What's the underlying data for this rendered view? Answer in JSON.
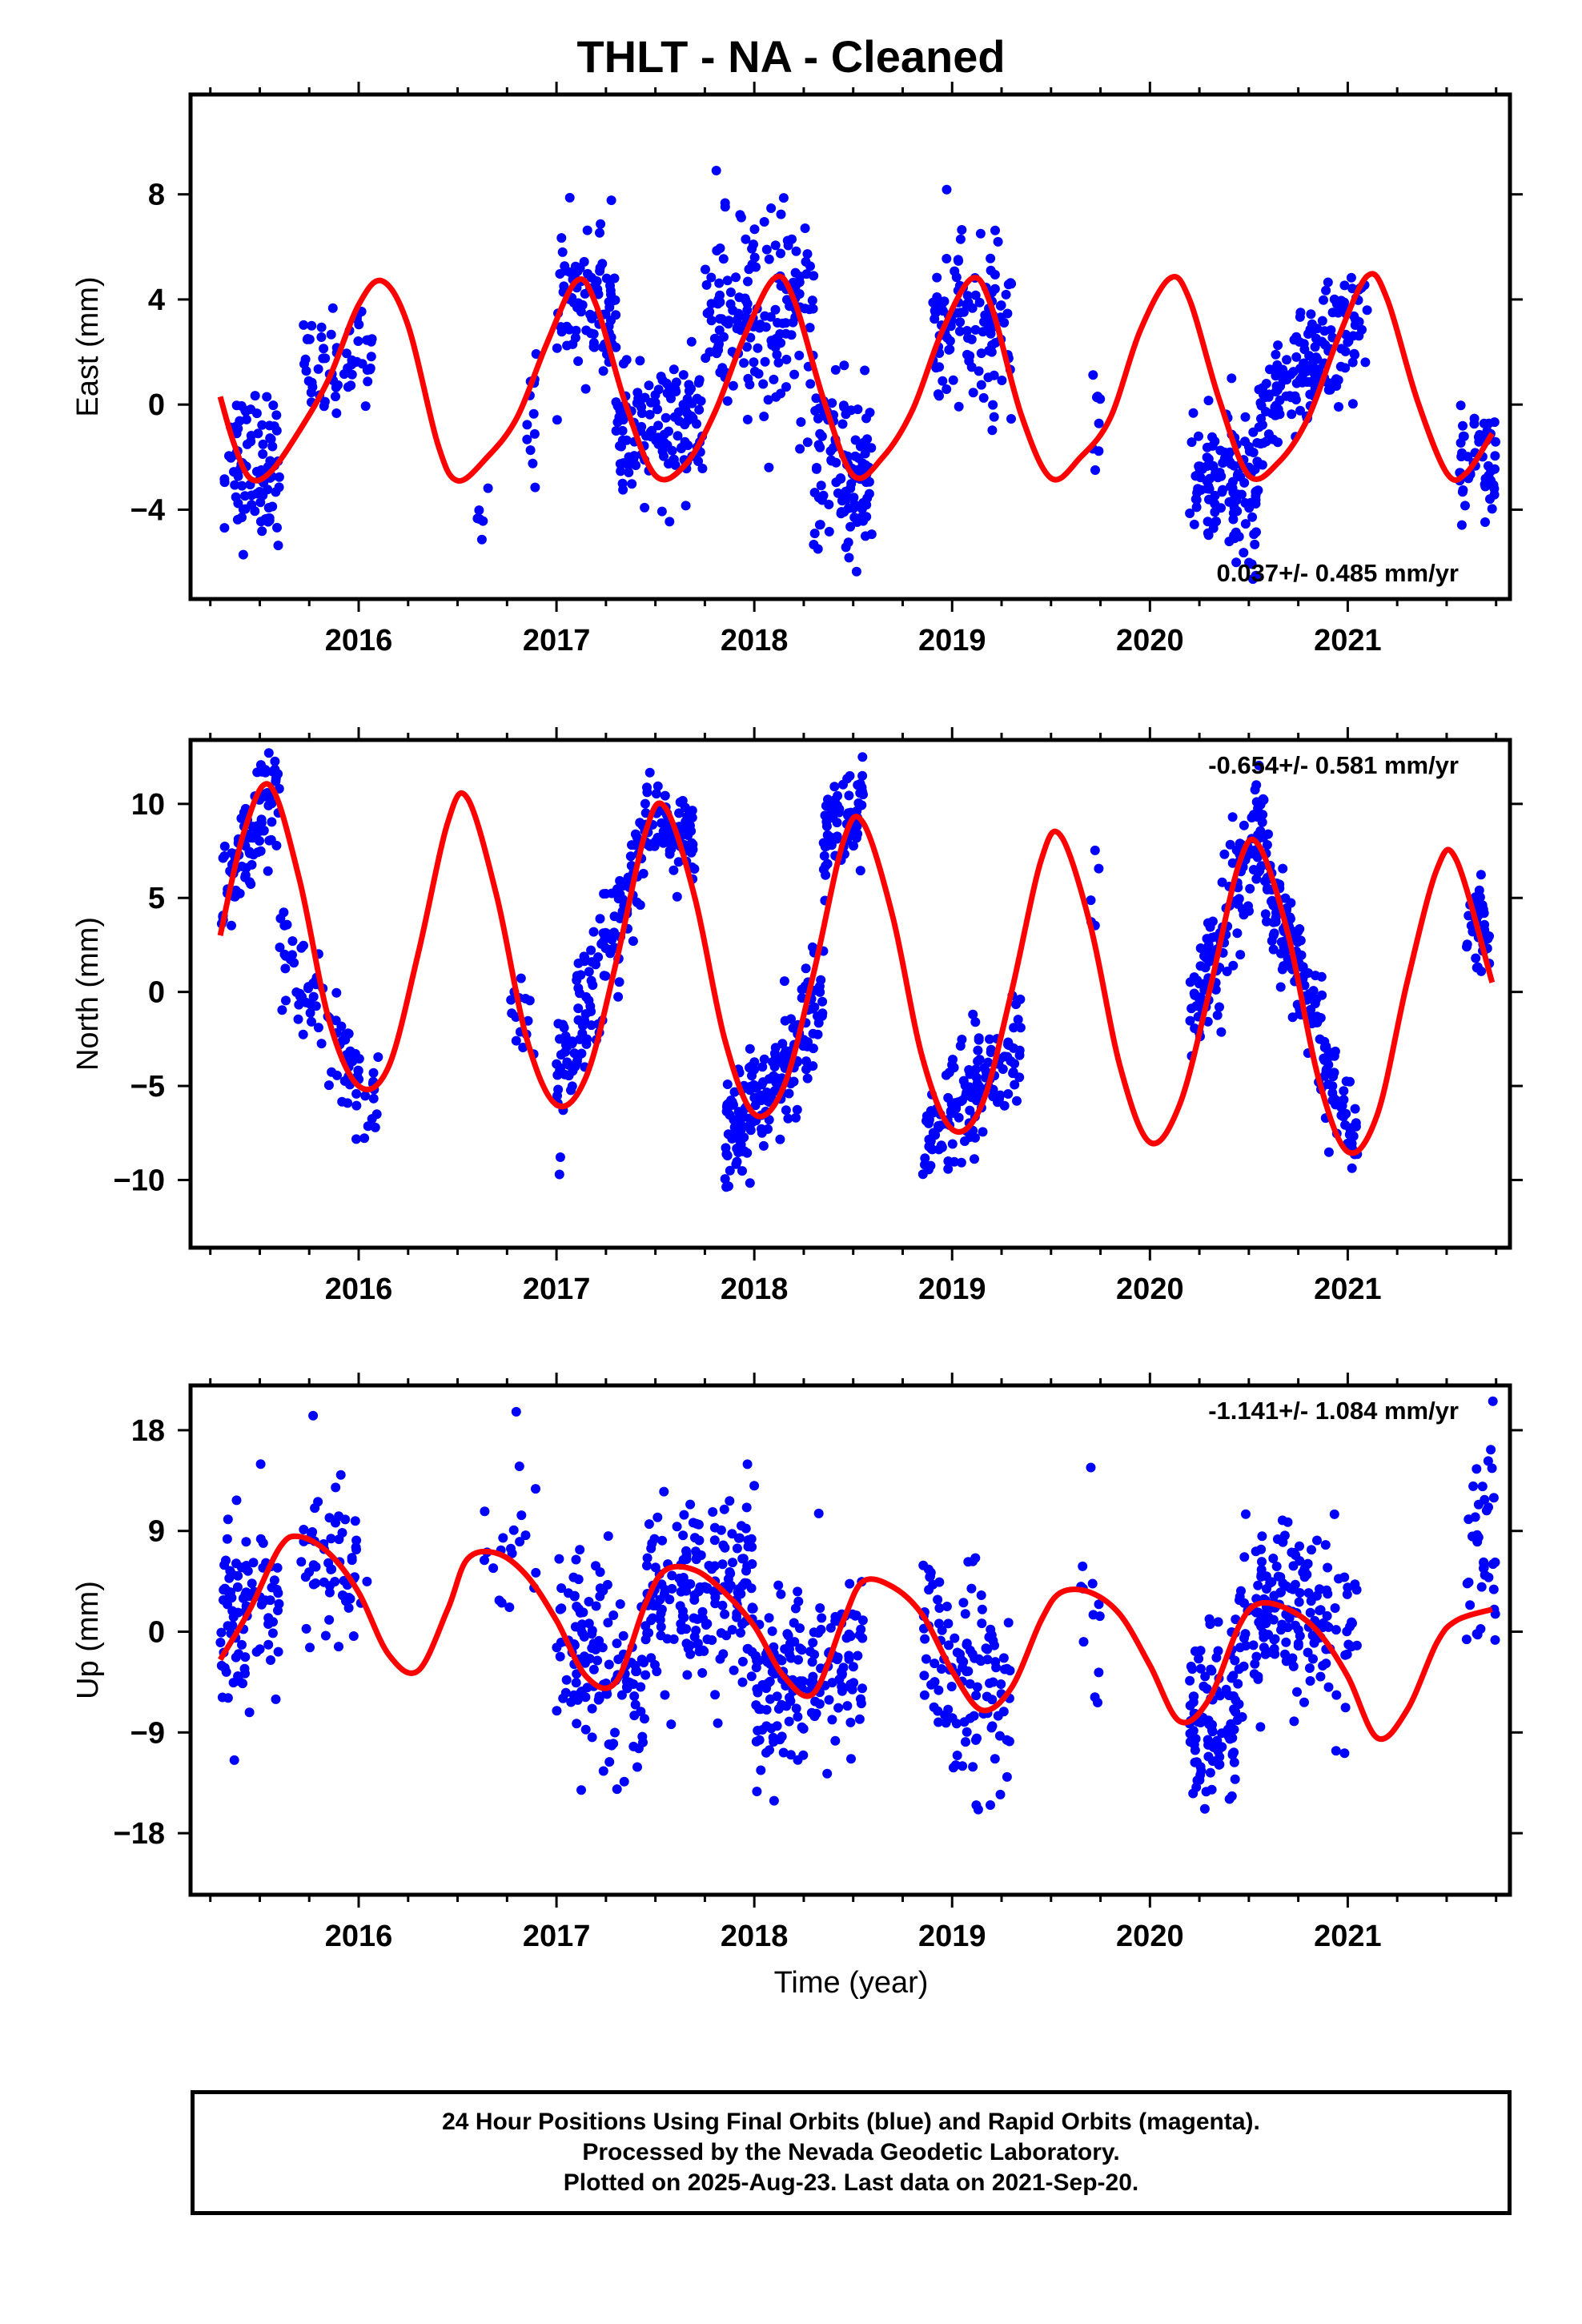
{
  "title": "THLT  - NA - Cleaned",
  "xlabel": "Time (year)",
  "footer": {
    "line1": "24 Hour Positions Using Final Orbits (blue) and Rapid Orbits (magenta).",
    "line2": "Processed by the Nevada Geodetic Laboratory.",
    "line3": "Plotted on 2025-Aug-23. Last data on 2021-Sep-20."
  },
  "colors": {
    "observations": "#0000ff",
    "model": "#ff0000",
    "frame": "#000000"
  },
  "chart_data": [
    {
      "type": "scatter",
      "ylabel": "East (mm)",
      "xlim": [
        2015.15,
        2021.82
      ],
      "ylim": [
        -7.4,
        11.8
      ],
      "x_ticks": [
        2016,
        2017,
        2018,
        2019,
        2020,
        2021
      ],
      "y_ticks": [
        -4,
        0,
        4,
        8
      ],
      "rate_label": "0.037+/- 0.485 mm/yr",
      "rate_position": "bottom-right",
      "model_curve": {
        "x": [
          2015.3,
          2015.37,
          2015.45,
          2015.55,
          2015.7,
          2015.85,
          2016.0,
          2016.12,
          2016.25,
          2016.4,
          2016.5,
          2016.65,
          2016.8,
          2016.95,
          2017.1,
          2017.2,
          2017.35,
          2017.5,
          2017.65,
          2017.8,
          2017.95,
          2018.1,
          2018.2,
          2018.35,
          2018.5,
          2018.65,
          2018.8,
          2018.95,
          2019.1,
          2019.2,
          2019.35,
          2019.5,
          2019.65,
          2019.8,
          2019.95,
          2020.1,
          2020.2,
          2020.35,
          2020.5,
          2020.65,
          2020.8,
          2020.95,
          2021.1,
          2021.2,
          2021.35,
          2021.5,
          2021.6,
          2021.73
        ],
        "y": [
          0.3,
          -1.5,
          -2.8,
          -2.6,
          -1.0,
          1.0,
          3.8,
          4.7,
          3.0,
          -1.5,
          -2.9,
          -2.0,
          -0.5,
          2.3,
          4.7,
          3.8,
          0.0,
          -2.7,
          -2.3,
          -0.3,
          2.6,
          4.8,
          4.0,
          0.2,
          -2.7,
          -2.0,
          -0.2,
          2.8,
          4.8,
          3.7,
          -0.4,
          -2.8,
          -2.0,
          -0.5,
          2.8,
          4.8,
          4.0,
          0.2,
          -2.7,
          -2.2,
          -0.5,
          2.5,
          4.9,
          4.0,
          0.2,
          -2.6,
          -2.6,
          -1.1
        ]
      },
      "seasonal_clusters": [
        {
          "start": 2015.32,
          "end": 2015.6,
          "center": -2.3,
          "slope": 0.8,
          "spread": 1.4,
          "count": 90
        },
        {
          "start": 2015.72,
          "end": 2016.07,
          "center": 1.6,
          "slope": 4.0,
          "spread": 1.0,
          "count": 60
        },
        {
          "start": 2016.6,
          "end": 2016.66,
          "center": -4.2,
          "slope": 0,
          "spread": 0.6,
          "count": 6
        },
        {
          "start": 2016.85,
          "end": 2016.9,
          "center": -0.4,
          "slope": 1.0,
          "spread": 1.2,
          "count": 12
        },
        {
          "start": 2017.0,
          "end": 2017.3,
          "center": 4.0,
          "slope": -2.0,
          "spread": 1.4,
          "count": 90
        },
        {
          "start": 2017.3,
          "end": 2017.75,
          "center": -1.0,
          "slope": 0.4,
          "spread": 1.2,
          "count": 140
        },
        {
          "start": 2017.75,
          "end": 2018.3,
          "center": 3.2,
          "slope": 2.0,
          "spread": 2.0,
          "count": 170
        },
        {
          "start": 2018.3,
          "end": 2018.6,
          "center": -2.5,
          "slope": -0.5,
          "spread": 1.6,
          "count": 110
        },
        {
          "start": 2018.9,
          "end": 2019.3,
          "center": 3.0,
          "slope": -1.0,
          "spread": 1.6,
          "count": 120
        },
        {
          "start": 2019.7,
          "end": 2019.75,
          "center": -0.5,
          "slope": 0,
          "spread": 1.0,
          "count": 8
        },
        {
          "start": 2020.2,
          "end": 2020.55,
          "center": -3.0,
          "slope": -2.0,
          "spread": 1.6,
          "count": 130
        },
        {
          "start": 2020.55,
          "end": 2021.1,
          "center": 1.5,
          "slope": 7.0,
          "spread": 1.1,
          "count": 170
        },
        {
          "start": 2021.55,
          "end": 2021.75,
          "center": -2.3,
          "slope": 1.0,
          "spread": 1.1,
          "count": 50
        }
      ]
    },
    {
      "type": "scatter",
      "ylabel": "North (mm)",
      "xlim": [
        2015.15,
        2021.82
      ],
      "ylim": [
        -13.6,
        13.4
      ],
      "x_ticks": [
        2016,
        2017,
        2018,
        2019,
        2020,
        2021
      ],
      "y_ticks": [
        -10,
        -5,
        0,
        5,
        10
      ],
      "rate_label": "-0.654+/- 0.581 mm/yr",
      "rate_position": "top-right",
      "model_curve": {
        "x": [
          2015.3,
          2015.42,
          2015.55,
          2015.7,
          2015.85,
          2016.0,
          2016.15,
          2016.3,
          2016.45,
          2016.55,
          2016.7,
          2016.85,
          2017.0,
          2017.15,
          2017.3,
          2017.45,
          2017.55,
          2017.7,
          2017.85,
          2018.0,
          2018.15,
          2018.3,
          2018.45,
          2018.55,
          2018.7,
          2018.85,
          2019.0,
          2019.15,
          2019.3,
          2019.45,
          2019.55,
          2019.7,
          2019.85,
          2020.0,
          2020.15,
          2020.3,
          2020.45,
          2020.55,
          2020.7,
          2020.85,
          2021.0,
          2021.15,
          2021.3,
          2021.45,
          2021.55,
          2021.73
        ],
        "y": [
          3.0,
          8.5,
          11.0,
          6.0,
          -1.5,
          -5.0,
          -4.0,
          2.0,
          9.0,
          10.3,
          5.0,
          -2.5,
          -6.0,
          -4.5,
          1.5,
          8.5,
          9.8,
          5.0,
          -2.5,
          -6.5,
          -5.0,
          1.0,
          8.0,
          9.0,
          4.0,
          -3.5,
          -7.3,
          -6.0,
          0.0,
          7.0,
          8.3,
          3.5,
          -4.0,
          -8.0,
          -6.0,
          0.0,
          6.8,
          7.8,
          3.0,
          -4.5,
          -8.5,
          -6.5,
          0.5,
          6.5,
          7.0,
          0.5
        ]
      },
      "seasonal_clusters": [
        {
          "start": 2015.3,
          "end": 2015.6,
          "center": 8.0,
          "slope": 20.0,
          "spread": 1.3,
          "count": 90
        },
        {
          "start": 2015.6,
          "end": 2016.1,
          "center": -2.0,
          "slope": -18.0,
          "spread": 1.4,
          "count": 90
        },
        {
          "start": 2016.75,
          "end": 2016.9,
          "center": -2.0,
          "slope": -8.0,
          "spread": 1.2,
          "count": 14
        },
        {
          "start": 2017.0,
          "end": 2017.45,
          "center": 1.5,
          "slope": 28.0,
          "spread": 1.6,
          "count": 140
        },
        {
          "start": 2017.45,
          "end": 2017.7,
          "center": 8.5,
          "slope": -6.0,
          "spread": 1.1,
          "count": 80
        },
        {
          "start": 2017.85,
          "end": 2018.35,
          "center": -4.5,
          "slope": 14.0,
          "spread": 1.6,
          "count": 180
        },
        {
          "start": 2018.35,
          "end": 2018.55,
          "center": 9.0,
          "slope": 8.0,
          "spread": 1.4,
          "count": 80
        },
        {
          "start": 2018.85,
          "end": 2019.35,
          "center": -5.5,
          "slope": 12.0,
          "spread": 1.7,
          "count": 140
        },
        {
          "start": 2019.7,
          "end": 2019.75,
          "center": 5.0,
          "slope": -10.0,
          "spread": 1.5,
          "count": 5
        },
        {
          "start": 2020.2,
          "end": 2020.58,
          "center": 3.5,
          "slope": 28.0,
          "spread": 1.6,
          "count": 140
        },
        {
          "start": 2020.58,
          "end": 2021.05,
          "center": -1.0,
          "slope": -32.0,
          "spread": 1.4,
          "count": 170
        },
        {
          "start": 2021.6,
          "end": 2021.72,
          "center": 3.5,
          "slope": -20.0,
          "spread": 1.2,
          "count": 40
        }
      ]
    },
    {
      "type": "scatter",
      "ylabel": "Up (mm)",
      "xlim": [
        2015.15,
        2021.82
      ],
      "ylim": [
        -23.5,
        22.0
      ],
      "x_ticks": [
        2016,
        2017,
        2018,
        2019,
        2020,
        2021
      ],
      "y_ticks": [
        -18,
        -9,
        0,
        9,
        18
      ],
      "rate_label": "-1.141+/- 1.084 mm/yr",
      "rate_position": "top-right",
      "model_curve": {
        "x": [
          2015.3,
          2015.45,
          2015.6,
          2015.7,
          2015.85,
          2016.0,
          2016.15,
          2016.3,
          2016.45,
          2016.55,
          2016.7,
          2016.85,
          2017.0,
          2017.15,
          2017.3,
          2017.45,
          2017.55,
          2017.7,
          2017.85,
          2018.0,
          2018.15,
          2018.3,
          2018.45,
          2018.55,
          2018.7,
          2018.85,
          2019.0,
          2019.15,
          2019.3,
          2019.45,
          2019.55,
          2019.7,
          2019.85,
          2020.0,
          2020.15,
          2020.3,
          2020.45,
          2020.55,
          2020.7,
          2020.85,
          2021.0,
          2021.15,
          2021.3,
          2021.45,
          2021.55,
          2021.73
        ],
        "y": [
          -2.5,
          2.0,
          7.5,
          8.5,
          7.0,
          3.5,
          -2.0,
          -3.5,
          2.0,
          6.5,
          7.0,
          5.0,
          1.0,
          -4.0,
          -4.5,
          2.5,
          5.5,
          5.5,
          3.5,
          0.5,
          -4.0,
          -5.5,
          1.0,
          4.5,
          4.0,
          1.5,
          -3.5,
          -7.0,
          -5.0,
          1.0,
          3.5,
          3.5,
          1.5,
          -3.0,
          -8.0,
          -6.0,
          0.5,
          2.5,
          2.0,
          0.0,
          -4.0,
          -9.5,
          -7.0,
          -1.0,
          1.0,
          2.0
        ]
      },
      "seasonal_clusters": [
        {
          "start": 2015.3,
          "end": 2015.6,
          "center": 3.0,
          "slope": 12.0,
          "spread": 4.0,
          "count": 90
        },
        {
          "start": 2015.7,
          "end": 2016.05,
          "center": 7.0,
          "slope": 0,
          "spread": 4.5,
          "count": 60
        },
        {
          "start": 2016.6,
          "end": 2016.9,
          "center": 8.0,
          "slope": -6.0,
          "spread": 5.0,
          "count": 20
        },
        {
          "start": 2017.0,
          "end": 2017.45,
          "center": -3.0,
          "slope": -8.0,
          "spread": 4.5,
          "count": 130
        },
        {
          "start": 2017.45,
          "end": 2018.0,
          "center": 3.5,
          "slope": 4.0,
          "spread": 4.0,
          "count": 190
        },
        {
          "start": 2018.0,
          "end": 2018.55,
          "center": -4.0,
          "slope": 6.0,
          "spread": 4.0,
          "count": 170
        },
        {
          "start": 2018.85,
          "end": 2019.3,
          "center": -4.0,
          "slope": -14.0,
          "spread": 4.5,
          "count": 120
        },
        {
          "start": 2019.65,
          "end": 2019.75,
          "center": 2.0,
          "slope": 0,
          "spread": 6.0,
          "count": 12
        },
        {
          "start": 2020.2,
          "end": 2020.45,
          "center": -8.0,
          "slope": 6.0,
          "spread": 4.0,
          "count": 110
        },
        {
          "start": 2020.45,
          "end": 2021.05,
          "center": 1.5,
          "slope": 0,
          "spread": 4.0,
          "count": 180
        },
        {
          "start": 2021.6,
          "end": 2021.75,
          "center": 7.0,
          "slope": 20.0,
          "spread": 5.0,
          "count": 40
        }
      ]
    }
  ]
}
